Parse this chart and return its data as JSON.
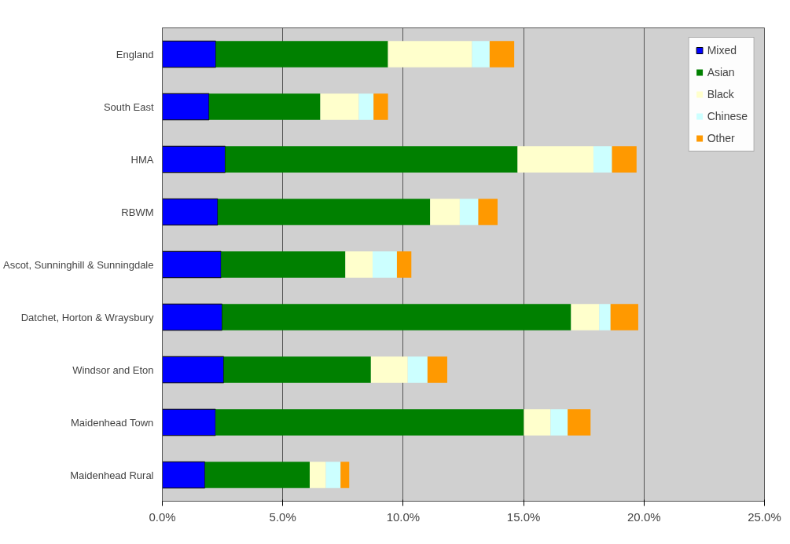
{
  "chart_data": {
    "type": "bar",
    "orientation": "horizontal",
    "stacked": true,
    "categories": [
      "England",
      "South East",
      "HMA",
      "RBWM",
      "Ascot, Sunninghill & Sunningdale",
      "Datchet, Horton & Wraysbury",
      "Windsor and Eton",
      "Maidenhead Town",
      "Maidenhead Rural"
    ],
    "series": [
      {
        "name": "Mixed",
        "color": "#0000ff",
        "values": [
          2.22,
          1.94,
          2.61,
          2.3,
          2.44,
          2.48,
          2.55,
          2.21,
          1.77
        ]
      },
      {
        "name": "Asian",
        "color": "#008000",
        "values": [
          7.15,
          4.62,
          12.14,
          8.82,
          5.16,
          14.49,
          6.11,
          12.8,
          4.35
        ]
      },
      {
        "name": "Black",
        "color": "#ffffcc",
        "values": [
          3.49,
          1.6,
          3.15,
          1.23,
          1.13,
          1.17,
          1.53,
          1.11,
          0.67
        ]
      },
      {
        "name": "Chinese",
        "color": "#ccffff",
        "values": [
          0.73,
          0.61,
          0.77,
          0.77,
          1.01,
          0.47,
          0.82,
          0.71,
          0.61
        ]
      },
      {
        "name": "Other",
        "color": "#ff9900",
        "values": [
          1.02,
          0.6,
          1.02,
          0.8,
          0.6,
          1.15,
          0.82,
          0.95,
          0.36
        ]
      }
    ],
    "xlim": [
      0,
      25
    ],
    "xticks": [
      {
        "value": 0,
        "label": "0.0%"
      },
      {
        "value": 5,
        "label": "5.0%"
      },
      {
        "value": 10,
        "label": "10.0%"
      },
      {
        "value": 15,
        "label": "15.0%"
      },
      {
        "value": 20,
        "label": "20.0%"
      },
      {
        "value": 25,
        "label": "25.0%"
      }
    ],
    "grid": "x",
    "legend": "top right"
  }
}
